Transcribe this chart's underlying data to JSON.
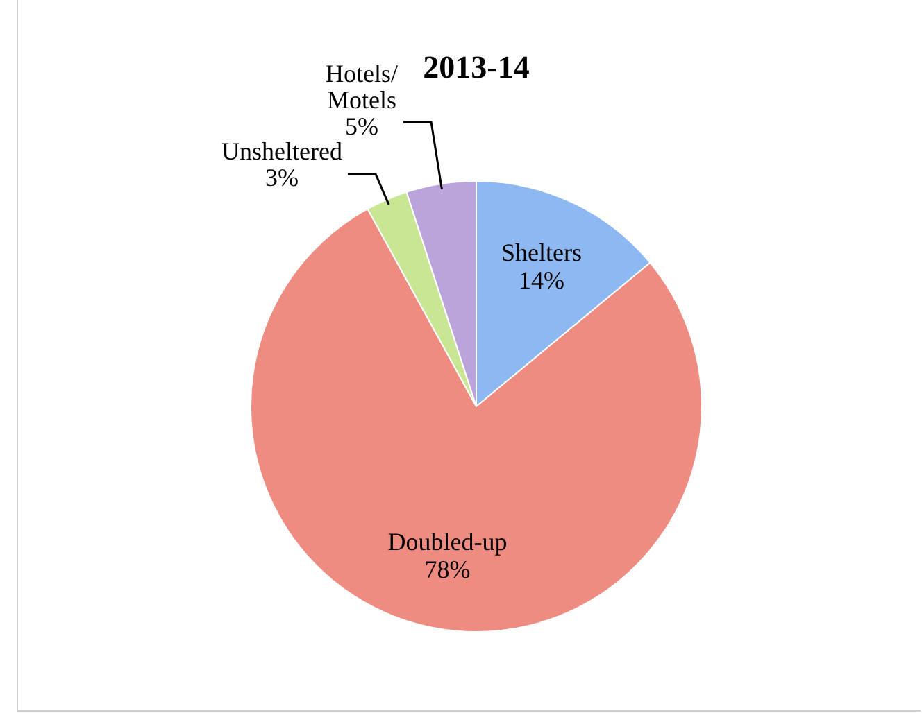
{
  "chart_data": {
    "type": "pie",
    "title": "2013-14",
    "categories": [
      "Shelters",
      "Doubled-up",
      "Unsheltered",
      "Hotels/ Motels"
    ],
    "values": [
      14,
      78,
      3,
      5
    ],
    "colors": [
      "#8db8f2",
      "#ef8c82",
      "#c9e695",
      "#bba3dc"
    ],
    "value_labels": [
      "14%",
      "78%",
      "3%",
      "5%"
    ],
    "legend": false
  }
}
